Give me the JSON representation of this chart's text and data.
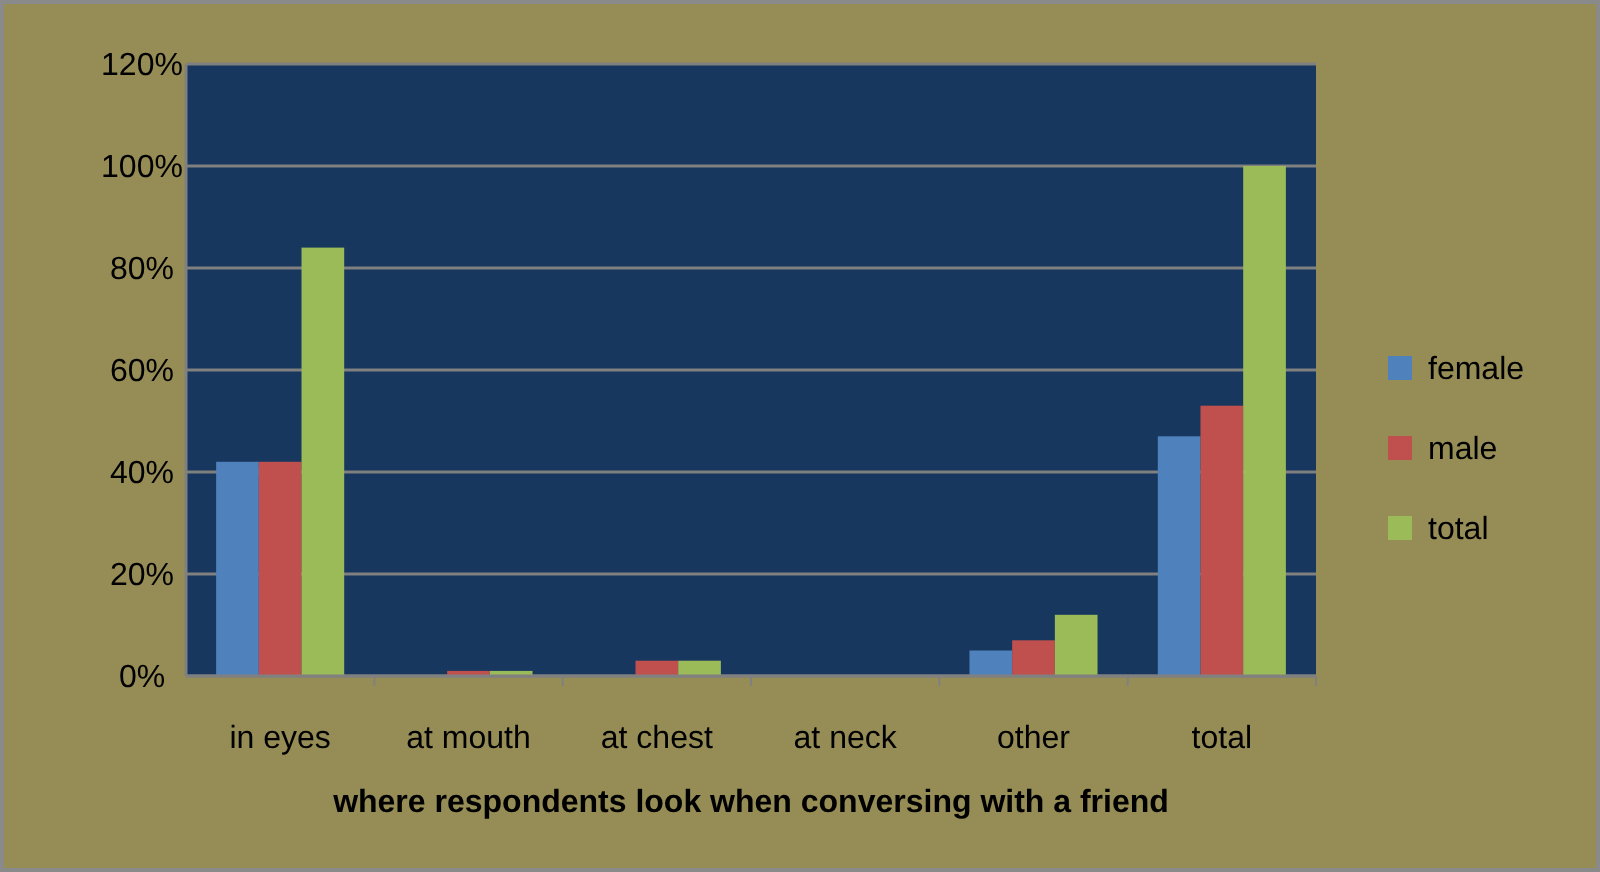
{
  "chart_data": {
    "type": "bar",
    "xlabel": "where respondents look  when conversing  with a friend",
    "categories": [
      "in eyes",
      "at mouth",
      "at chest",
      "at neck",
      "other",
      "total"
    ],
    "series": [
      {
        "name": "female",
        "color": "#4f81bd",
        "values": [
          42,
          0,
          0,
          0,
          5,
          47
        ]
      },
      {
        "name": "male",
        "color": "#c0504d",
        "values": [
          42,
          1,
          3,
          0,
          7,
          53
        ]
      },
      {
        "name": "total",
        "color": "#9bbb59",
        "values": [
          84,
          1,
          3,
          0,
          12,
          100
        ]
      }
    ],
    "ylim": [
      0,
      120
    ],
    "yticks": [
      {
        "value": 0,
        "label": "0%"
      },
      {
        "value": 20,
        "label": "20%"
      },
      {
        "value": 40,
        "label": "40%"
      },
      {
        "value": 60,
        "label": "60%"
      },
      {
        "value": 80,
        "label": "80%"
      },
      {
        "value": 100,
        "label": "100%"
      },
      {
        "value": 120,
        "label": "120%"
      }
    ],
    "grid": "y",
    "legend": "right"
  }
}
